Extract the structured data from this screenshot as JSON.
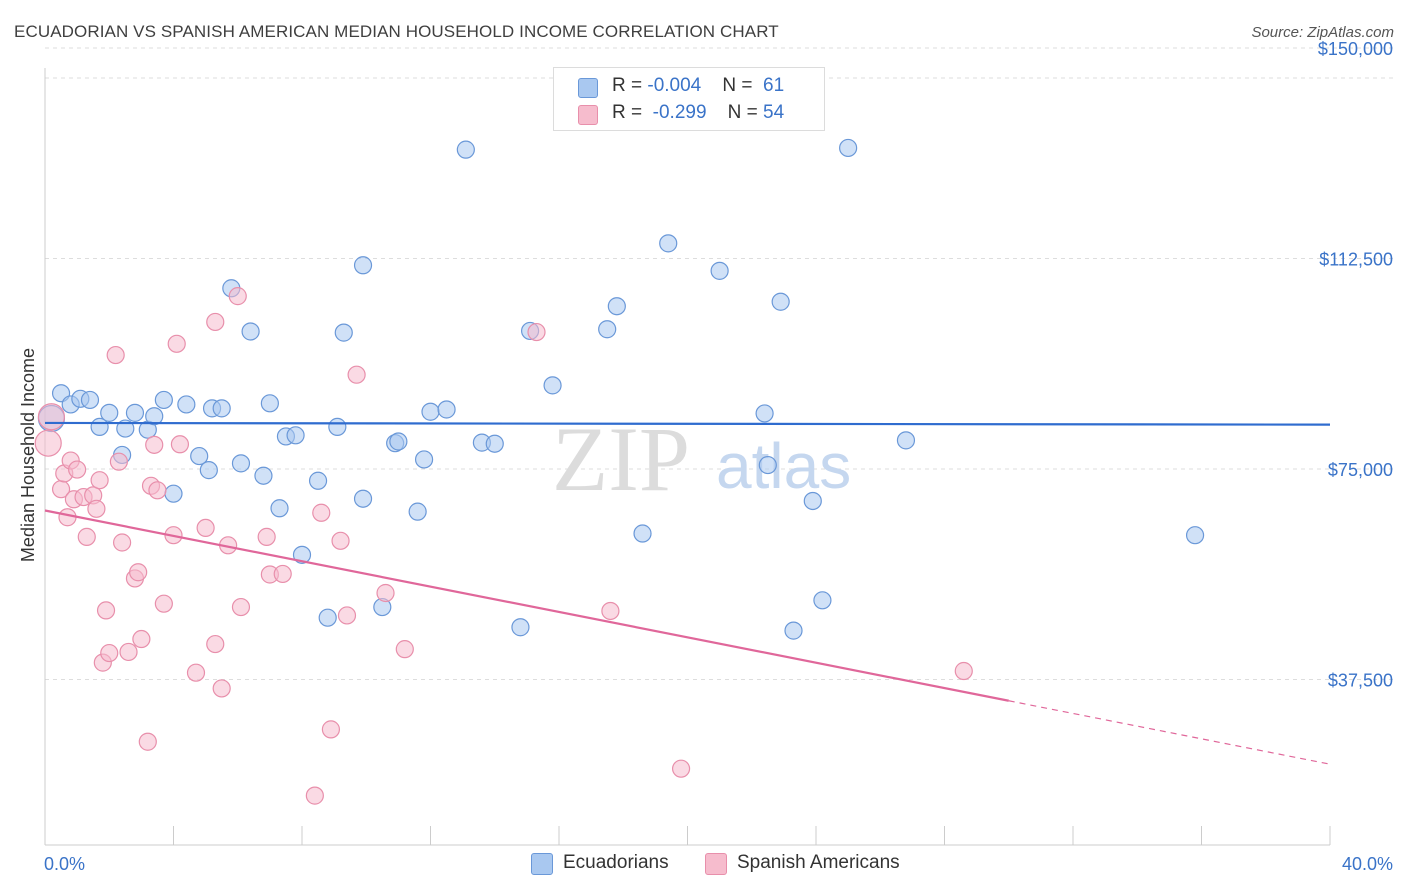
{
  "title": "ECUADORIAN VS SPANISH AMERICAN MEDIAN HOUSEHOLD INCOME CORRELATION CHART",
  "source": "Source: ZipAtlas.com",
  "watermark": {
    "zip": "ZIP",
    "atlas": "atlas"
  },
  "legend": {
    "rows": [
      {
        "r_label": "R = ",
        "r_value": "-0.004",
        "n_label": "N = ",
        "n_value": "61",
        "color": "#a9c8f0",
        "border": "#6a98d8"
      },
      {
        "r_label": "R = ",
        "r_value": "-0.299",
        "n_label": "N = ",
        "n_value": "54",
        "color": "#f6bccd",
        "border": "#e88fab"
      }
    ]
  },
  "bottom_legend": {
    "ecuadorians": "Ecuadorians",
    "spanish_americans": "Spanish Americans"
  },
  "chart_data": {
    "type": "scatter",
    "xlabel": "",
    "ylabel": "Median Household Income",
    "xlim": [
      0,
      40
    ],
    "ylim": [
      8000,
      155000
    ],
    "x_tick_labels": [
      "0.0%",
      "40.0%"
    ],
    "y_ticks": [
      37500,
      75000,
      112500,
      150000
    ],
    "y_tick_labels": [
      "$37,500",
      "$75,000",
      "$112,500",
      "$150,000"
    ],
    "grid": true,
    "legend_position": "top-center",
    "colors": {
      "ecuadorians": "#6a98d8",
      "ecuadorians_fill": "#a9c8f0",
      "ecuadorians_line": "#2f6ccf",
      "spanish": "#e88fab",
      "spanish_fill": "#f6bccd",
      "spanish_line": "#e0679a"
    },
    "series": [
      {
        "name": "Ecuadorians",
        "trend": {
          "x0": 0,
          "y0": 83200,
          "x1": 40,
          "y1": 82900
        },
        "points": [
          [
            0.2,
            84000
          ],
          [
            0.5,
            88500
          ],
          [
            0.8,
            86500
          ],
          [
            1.1,
            87500
          ],
          [
            1.4,
            87300
          ],
          [
            1.7,
            82500
          ],
          [
            2.0,
            85000
          ],
          [
            2.4,
            77500
          ],
          [
            2.5,
            82200
          ],
          [
            2.8,
            85000
          ],
          [
            3.2,
            82000
          ],
          [
            3.4,
            84400
          ],
          [
            3.7,
            87300
          ],
          [
            4.0,
            70600
          ],
          [
            4.4,
            86500
          ],
          [
            4.8,
            77300
          ],
          [
            5.1,
            74800
          ],
          [
            5.2,
            85800
          ],
          [
            5.5,
            85800
          ],
          [
            5.8,
            107200
          ],
          [
            6.1,
            76000
          ],
          [
            6.4,
            99500
          ],
          [
            6.8,
            73800
          ],
          [
            7.0,
            86700
          ],
          [
            7.3,
            68000
          ],
          [
            7.5,
            80800
          ],
          [
            7.8,
            81000
          ],
          [
            8.0,
            59700
          ],
          [
            8.5,
            72900
          ],
          [
            8.8,
            48500
          ],
          [
            9.1,
            82500
          ],
          [
            9.3,
            99300
          ],
          [
            9.9,
            69700
          ],
          [
            9.9,
            111300
          ],
          [
            10.5,
            50400
          ],
          [
            10.9,
            79600
          ],
          [
            11.0,
            79900
          ],
          [
            11.6,
            67400
          ],
          [
            11.8,
            76700
          ],
          [
            12.0,
            85200
          ],
          [
            12.5,
            85600
          ],
          [
            13.1,
            131900
          ],
          [
            13.6,
            79700
          ],
          [
            14.0,
            79500
          ],
          [
            14.8,
            46800
          ],
          [
            15.1,
            99600
          ],
          [
            15.8,
            89900
          ],
          [
            17.5,
            99900
          ],
          [
            17.8,
            104000
          ],
          [
            18.6,
            63500
          ],
          [
            19.4,
            115200
          ],
          [
            21.0,
            110300
          ],
          [
            22.4,
            84900
          ],
          [
            22.5,
            75700
          ],
          [
            22.9,
            104800
          ],
          [
            23.3,
            46200
          ],
          [
            23.9,
            69300
          ],
          [
            24.2,
            51600
          ],
          [
            25.0,
            132200
          ],
          [
            26.8,
            80100
          ],
          [
            35.8,
            63200
          ]
        ]
      },
      {
        "name": "Spanish Americans",
        "trend": {
          "x0": 0,
          "y0": 67600,
          "x1": 30,
          "y1": 33700,
          "dash_to_x": 40,
          "dash_to_y": 22400
        },
        "points": [
          [
            0.1,
            79600
          ],
          [
            0.2,
            84300
          ],
          [
            0.5,
            71400
          ],
          [
            0.6,
            74200
          ],
          [
            0.7,
            66400
          ],
          [
            0.8,
            76500
          ],
          [
            0.9,
            69600
          ],
          [
            1.0,
            74900
          ],
          [
            1.2,
            70000
          ],
          [
            1.3,
            62900
          ],
          [
            1.5,
            70300
          ],
          [
            1.6,
            67900
          ],
          [
            1.7,
            73000
          ],
          [
            1.8,
            40500
          ],
          [
            1.9,
            49800
          ],
          [
            2.0,
            42200
          ],
          [
            2.2,
            95300
          ],
          [
            2.3,
            76300
          ],
          [
            2.4,
            61900
          ],
          [
            2.6,
            42400
          ],
          [
            2.8,
            55500
          ],
          [
            2.9,
            56600
          ],
          [
            3.0,
            44700
          ],
          [
            3.2,
            26400
          ],
          [
            3.3,
            72000
          ],
          [
            3.4,
            79300
          ],
          [
            3.5,
            71200
          ],
          [
            3.7,
            51000
          ],
          [
            4.0,
            63200
          ],
          [
            4.1,
            97300
          ],
          [
            4.2,
            79400
          ],
          [
            4.7,
            38700
          ],
          [
            5.0,
            64500
          ],
          [
            5.3,
            101200
          ],
          [
            5.3,
            43800
          ],
          [
            5.5,
            35900
          ],
          [
            5.7,
            61400
          ],
          [
            6.0,
            105800
          ],
          [
            6.1,
            50400
          ],
          [
            6.9,
            62900
          ],
          [
            7.0,
            56200
          ],
          [
            7.4,
            56300
          ],
          [
            8.4,
            16800
          ],
          [
            8.6,
            67200
          ],
          [
            8.9,
            28600
          ],
          [
            9.2,
            62200
          ],
          [
            9.4,
            48900
          ],
          [
            9.7,
            91800
          ],
          [
            10.6,
            52900
          ],
          [
            11.2,
            42900
          ],
          [
            15.3,
            99400
          ],
          [
            17.6,
            49700
          ],
          [
            19.8,
            21600
          ],
          [
            28.6,
            39000
          ]
        ]
      }
    ]
  }
}
